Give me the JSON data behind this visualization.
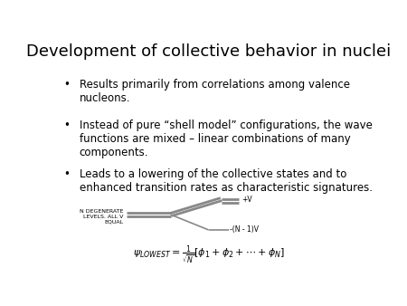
{
  "title": "Development of collective behavior in nuclei",
  "title_fontsize": 13,
  "bullet_points": [
    "Results primarily from correlations among valence\nnucleons.",
    "Instead of pure “shell model” configurations, the wave\nfunctions are mixed – linear combinations of many\ncomponents.",
    "Leads to a lowering of the collective states and to\nenhanced transition rates as characteristic signatures."
  ],
  "bullet_fontsize": 8.5,
  "bg_color": "#ffffff",
  "text_color": "#000000",
  "diagram": {
    "label_left": "N DEGENERATE\nLEVELS. ALL V\nEQUAL",
    "label_top": "+V",
    "label_bottom": "-(N - 1)V",
    "formula": "$\\psi_{LOWEST} = \\frac{1}{\\sqrt{N}}[\\phi_1 + \\phi_2 + \\cdots + \\phi_N]$"
  }
}
